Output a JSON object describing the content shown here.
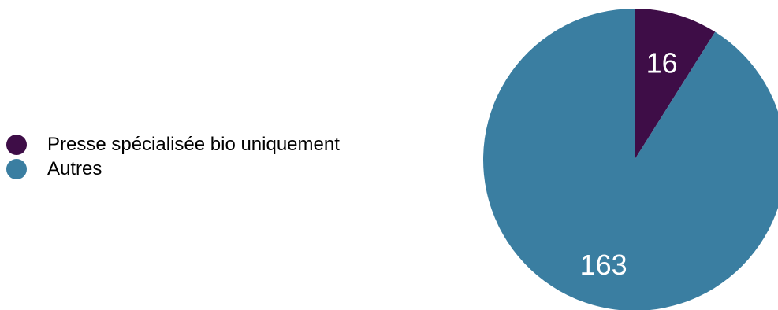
{
  "chart_data": {
    "type": "pie",
    "title": "",
    "legend_position": "left",
    "slices": [
      {
        "label": "Presse spécialisée bio uniquement",
        "value": 16,
        "color": "#3e0d47"
      },
      {
        "label": "Autres",
        "value": 163,
        "color": "#3a7ea1"
      }
    ],
    "start_angle": "top",
    "direction": "clockwise"
  }
}
